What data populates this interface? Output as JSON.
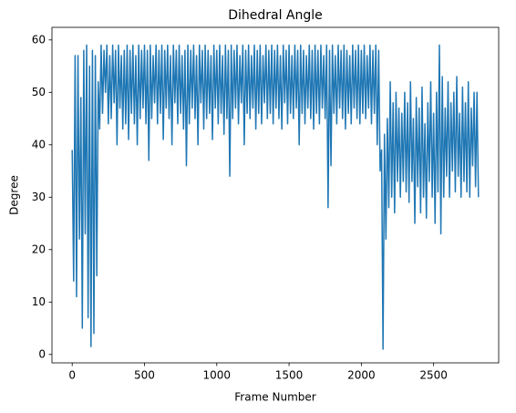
{
  "chart_data": {
    "type": "line",
    "title": "Dihedral Angle",
    "xlabel": "Frame Number",
    "ylabel": "Degree",
    "x": [
      0,
      10,
      20,
      30,
      40,
      50,
      60,
      70,
      80,
      90,
      100,
      110,
      120,
      130,
      140,
      150,
      160,
      170,
      180,
      190,
      200,
      210,
      220,
      230,
      240,
      250,
      260,
      270,
      280,
      290,
      300,
      310,
      320,
      330,
      340,
      350,
      360,
      370,
      380,
      390,
      400,
      410,
      420,
      430,
      440,
      450,
      460,
      470,
      480,
      490,
      500,
      510,
      520,
      530,
      540,
      550,
      560,
      570,
      580,
      590,
      600,
      610,
      620,
      630,
      640,
      650,
      660,
      670,
      680,
      690,
      700,
      710,
      720,
      730,
      740,
      750,
      760,
      770,
      780,
      790,
      800,
      810,
      820,
      830,
      840,
      850,
      860,
      870,
      880,
      890,
      900,
      910,
      920,
      930,
      940,
      950,
      960,
      970,
      980,
      990,
      1000,
      1010,
      1020,
      1030,
      1040,
      1050,
      1060,
      1070,
      1080,
      1090,
      1100,
      1110,
      1120,
      1130,
      1140,
      1150,
      1160,
      1170,
      1180,
      1190,
      1200,
      1210,
      1220,
      1230,
      1240,
      1250,
      1260,
      1270,
      1280,
      1290,
      1300,
      1310,
      1320,
      1330,
      1340,
      1350,
      1360,
      1370,
      1380,
      1390,
      1400,
      1410,
      1420,
      1430,
      1440,
      1450,
      1460,
      1470,
      1480,
      1490,
      1500,
      1510,
      1520,
      1530,
      1540,
      1550,
      1560,
      1570,
      1580,
      1590,
      1600,
      1610,
      1620,
      1630,
      1640,
      1650,
      1660,
      1670,
      1680,
      1690,
      1700,
      1710,
      1720,
      1730,
      1740,
      1750,
      1760,
      1770,
      1780,
      1790,
      1800,
      1810,
      1820,
      1830,
      1840,
      1850,
      1860,
      1870,
      1880,
      1890,
      1900,
      1910,
      1920,
      1930,
      1940,
      1950,
      1960,
      1970,
      1980,
      1990,
      2000,
      2010,
      2020,
      2030,
      2040,
      2050,
      2060,
      2070,
      2080,
      2090,
      2100,
      2110,
      2120,
      2130,
      2140,
      2150,
      2160,
      2170,
      2180,
      2190,
      2200,
      2210,
      2220,
      2230,
      2240,
      2250,
      2260,
      2270,
      2280,
      2290,
      2300,
      2310,
      2320,
      2330,
      2340,
      2350,
      2360,
      2370,
      2380,
      2390,
      2400,
      2410,
      2420,
      2430,
      2440,
      2450,
      2460,
      2470,
      2480,
      2490,
      2500,
      2510,
      2520,
      2530,
      2540,
      2550,
      2560,
      2570,
      2580,
      2590,
      2600,
      2610,
      2620,
      2630,
      2640,
      2650,
      2660,
      2670,
      2680,
      2690,
      2700,
      2710,
      2720,
      2730,
      2740,
      2750,
      2760,
      2770,
      2780,
      2790,
      2800,
      2810
    ],
    "series": [
      {
        "name": "Dihedral Angle",
        "color": "#1f77b4",
        "values": [
          39,
          14,
          57,
          11,
          57,
          22,
          49,
          5,
          58,
          23,
          59,
          7,
          55,
          1.5,
          58,
          4,
          57,
          15,
          52,
          43,
          59,
          46,
          58,
          50,
          59,
          44,
          57,
          45,
          59,
          48,
          58,
          40,
          59,
          47,
          57,
          43,
          58,
          44,
          59,
          41,
          58,
          46,
          59,
          44,
          57,
          40,
          59,
          45,
          58,
          47,
          59,
          44,
          58,
          37,
          59,
          45,
          57,
          48,
          59,
          44,
          58,
          46,
          59,
          41,
          58,
          47,
          59,
          45,
          57,
          40,
          59,
          48,
          58,
          44,
          59,
          46,
          57,
          43,
          58,
          36,
          59,
          44,
          58,
          47,
          59,
          45,
          57,
          40,
          59,
          48,
          58,
          43,
          59,
          45,
          58,
          46,
          57,
          41,
          59,
          47,
          58,
          44,
          59,
          46,
          57,
          42,
          59,
          45,
          58,
          34,
          59,
          45,
          58,
          47,
          59,
          44,
          57,
          48,
          59,
          40,
          58,
          46,
          59,
          45,
          57,
          47,
          59,
          43,
          58,
          46,
          59,
          44,
          57,
          48,
          59,
          45,
          58,
          46,
          59,
          44,
          58,
          47,
          59,
          45,
          57,
          43,
          59,
          48,
          58,
          44,
          59,
          46,
          57,
          45,
          59,
          47,
          58,
          40,
          59,
          46,
          58,
          44,
          57,
          47,
          59,
          45,
          58,
          43,
          59,
          46,
          58,
          44,
          59,
          47,
          57,
          45,
          59,
          28,
          58,
          36,
          59,
          46,
          57,
          44,
          59,
          47,
          58,
          45,
          59,
          43,
          58,
          46,
          57,
          44,
          59,
          47,
          58,
          45,
          59,
          44,
          58,
          46,
          59,
          45,
          57,
          47,
          59,
          44,
          58,
          46,
          59,
          40,
          58,
          35,
          39,
          1,
          42,
          22,
          45,
          28,
          52,
          30,
          48,
          27,
          50,
          33,
          47,
          30,
          46,
          33,
          50,
          31,
          48,
          29,
          52,
          33,
          45,
          25,
          49,
          32,
          47,
          27,
          51,
          30,
          44,
          26,
          48,
          33,
          52,
          30,
          46,
          25,
          50,
          31,
          59,
          23,
          53,
          30,
          47,
          34,
          52,
          30,
          48,
          35,
          50,
          31,
          53,
          34,
          46,
          30,
          51,
          33,
          48,
          31,
          52,
          30,
          47,
          36,
          50,
          32,
          50,
          30
        ]
      }
    ],
    "xlim": [
      -140,
      2950
    ],
    "ylim": [
      -1.6,
      62.4
    ],
    "xticks": [
      0,
      500,
      1000,
      1500,
      2000,
      2500
    ],
    "yticks": [
      0,
      10,
      20,
      30,
      40,
      50,
      60
    ]
  }
}
